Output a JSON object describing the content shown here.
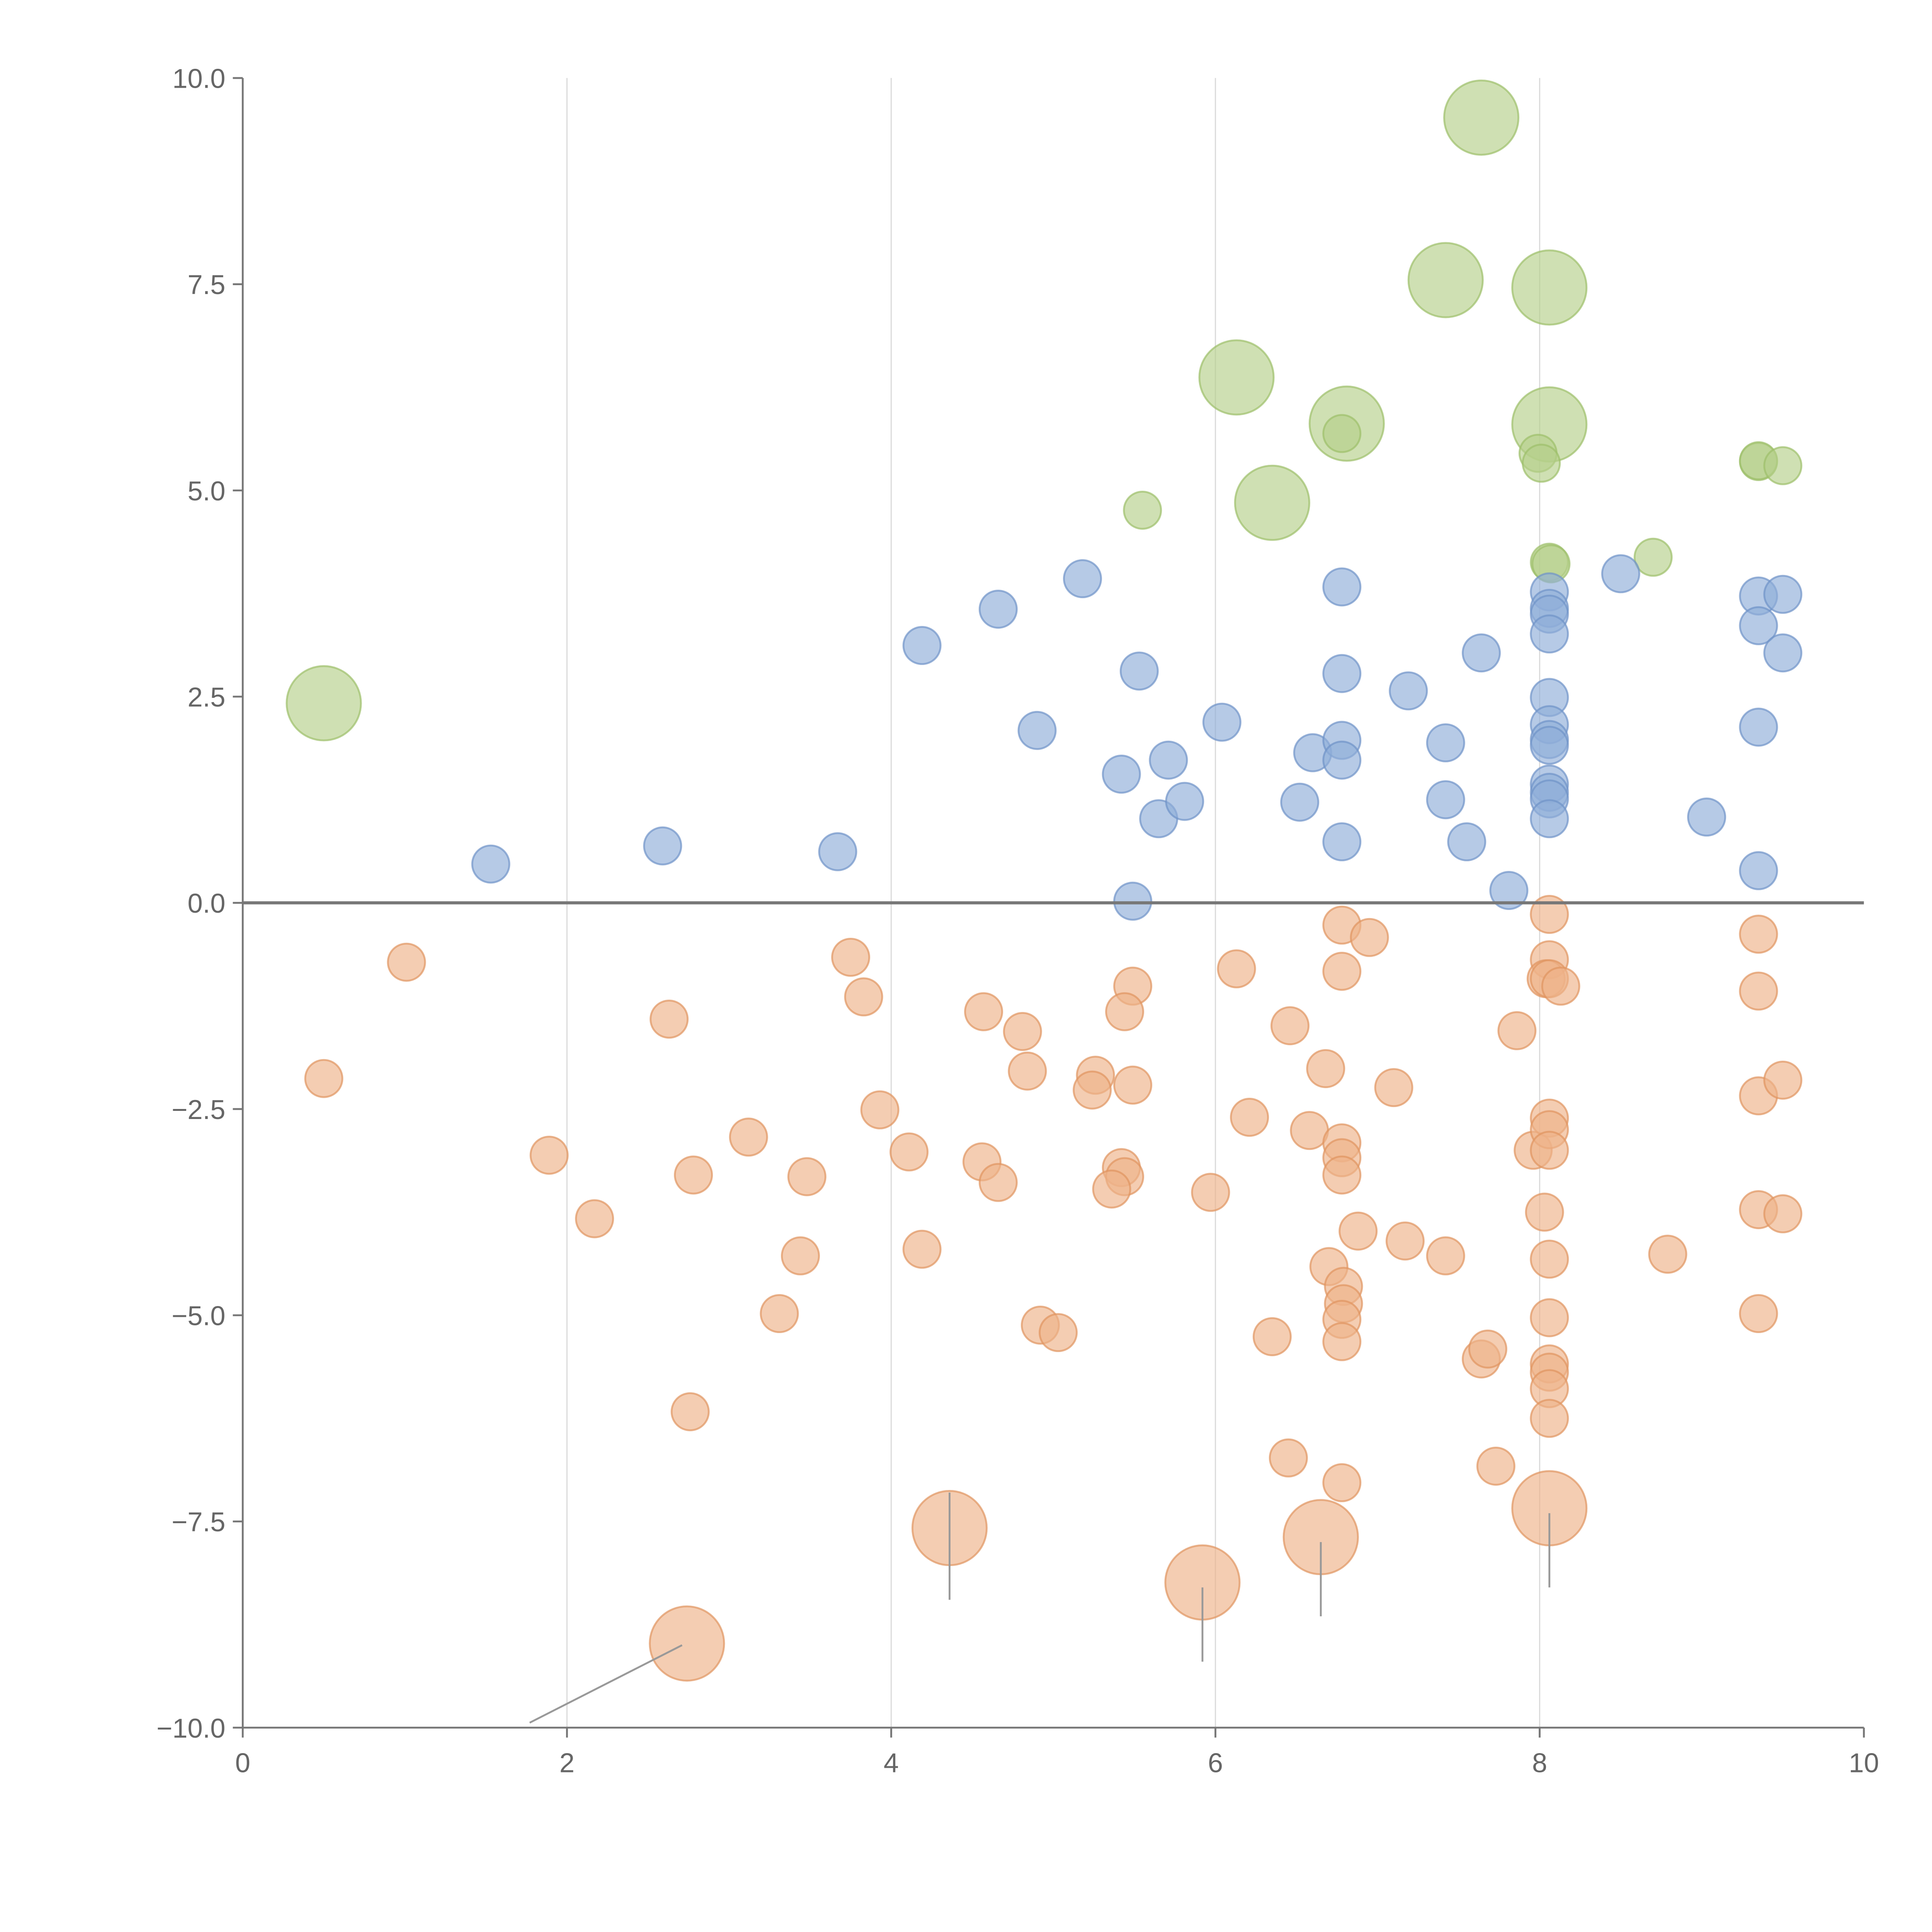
{
  "chart_data": {
    "type": "scatter",
    "title": "",
    "xlabel": "",
    "ylabel": "",
    "xlim": [
      0,
      10
    ],
    "ylim": [
      -10,
      10
    ],
    "grid": "vertical",
    "x_ticks": [
      "0",
      "2",
      "4",
      "6",
      "8",
      "10"
    ],
    "x_tick_values": [
      0,
      2,
      4,
      6,
      8,
      10
    ],
    "y_ticks": [
      "10.0",
      "7.5",
      "5.0",
      "2.5",
      "0.0",
      "−2.5",
      "−5.0",
      "−7.5",
      "−10.0"
    ],
    "y_tick_values": [
      10,
      7.5,
      5,
      2.5,
      0,
      -2.5,
      -5,
      -7.5,
      -10
    ],
    "reference_line_y": 0,
    "point_format": "[x, y, relative_size]",
    "series": [
      {
        "name": "green",
        "color": "#b5d08a",
        "stroke": "#9cbf6a",
        "points": [
          [
            7.64,
            9.52,
            4
          ],
          [
            7.42,
            7.55,
            4
          ],
          [
            8.06,
            7.46,
            4
          ],
          [
            6.13,
            6.37,
            4
          ],
          [
            6.81,
            5.81,
            4
          ],
          [
            8.06,
            5.8,
            4
          ],
          [
            6.35,
            4.85,
            4
          ],
          [
            0.5,
            2.42,
            4
          ],
          [
            6.78,
            5.69,
            1
          ],
          [
            7.99,
            5.45,
            1
          ],
          [
            8.01,
            5.33,
            1
          ],
          [
            9.35,
            5.35,
            1
          ],
          [
            9.35,
            5.36,
            1
          ],
          [
            9.5,
            5.3,
            1
          ],
          [
            5.55,
            4.76,
            1
          ],
          [
            8.7,
            4.19,
            1
          ],
          [
            8.06,
            4.13,
            1
          ],
          [
            8.07,
            4.11,
            1
          ]
        ]
      },
      {
        "name": "blue",
        "color": "#8fadd9",
        "stroke": "#6f93c8",
        "points": [
          [
            1.53,
            0.47,
            1
          ],
          [
            2.59,
            0.69,
            1
          ],
          [
            3.67,
            0.62,
            1
          ],
          [
            4.19,
            3.12,
            1
          ],
          [
            4.66,
            3.56,
            1
          ],
          [
            4.9,
            2.09,
            1
          ],
          [
            5.18,
            3.93,
            1
          ],
          [
            5.53,
            2.81,
            1
          ],
          [
            5.42,
            1.56,
            1
          ],
          [
            5.65,
            1.02,
            1
          ],
          [
            5.71,
            1.73,
            1
          ],
          [
            5.81,
            1.23,
            1
          ],
          [
            5.49,
            0.02,
            1
          ],
          [
            6.04,
            2.19,
            1
          ],
          [
            6.52,
            1.22,
            1
          ],
          [
            6.6,
            1.82,
            1
          ],
          [
            6.78,
            3.83,
            1
          ],
          [
            6.78,
            2.78,
            1
          ],
          [
            6.78,
            1.97,
            1
          ],
          [
            6.78,
            1.73,
            1
          ],
          [
            6.78,
            0.74,
            1
          ],
          [
            7.19,
            2.57,
            1
          ],
          [
            7.42,
            1.94,
            1
          ],
          [
            7.42,
            1.25,
            1
          ],
          [
            7.55,
            0.74,
            1
          ],
          [
            7.64,
            3.03,
            1
          ],
          [
            7.81,
            0.15,
            1
          ],
          [
            8.06,
            3.77,
            1
          ],
          [
            8.06,
            3.57,
            1
          ],
          [
            8.06,
            3.5,
            1
          ],
          [
            8.06,
            3.26,
            1
          ],
          [
            8.06,
            2.49,
            1
          ],
          [
            8.06,
            2.16,
            1
          ],
          [
            8.06,
            1.98,
            1
          ],
          [
            8.06,
            1.91,
            1
          ],
          [
            8.06,
            1.44,
            1
          ],
          [
            8.06,
            1.34,
            1
          ],
          [
            8.06,
            1.26,
            1
          ],
          [
            8.06,
            1.02,
            1
          ],
          [
            8.5,
            3.99,
            1
          ],
          [
            9.03,
            1.04,
            1
          ],
          [
            9.35,
            3.72,
            1
          ],
          [
            9.35,
            3.36,
            1
          ],
          [
            9.35,
            2.13,
            1
          ],
          [
            9.35,
            0.39,
            1
          ],
          [
            9.5,
            3.74,
            1
          ],
          [
            9.5,
            3.03,
            1
          ]
        ]
      },
      {
        "name": "orange",
        "color": "#eeb288",
        "stroke": "#e09460",
        "points": [
          [
            0.5,
            -2.13,
            1
          ],
          [
            1.01,
            -0.72,
            1
          ],
          [
            1.89,
            -3.06,
            1
          ],
          [
            2.17,
            -3.83,
            1
          ],
          [
            2.63,
            -1.41,
            1
          ],
          [
            2.78,
            -3.3,
            1
          ],
          [
            2.76,
            -6.17,
            1
          ],
          [
            3.12,
            -2.84,
            1
          ],
          [
            3.31,
            -4.98,
            1
          ],
          [
            3.44,
            -4.28,
            1
          ],
          [
            3.48,
            -3.32,
            1
          ],
          [
            3.75,
            -0.66,
            1
          ],
          [
            3.83,
            -1.14,
            1
          ],
          [
            3.93,
            -2.51,
            1
          ],
          [
            4.11,
            -3.02,
            1
          ],
          [
            4.19,
            -4.2,
            1
          ],
          [
            4.57,
            -1.32,
            1
          ],
          [
            4.56,
            -3.14,
            1
          ],
          [
            4.66,
            -3.39,
            1
          ],
          [
            4.81,
            -1.56,
            1
          ],
          [
            4.84,
            -2.04,
            1
          ],
          [
            4.92,
            -5.12,
            1
          ],
          [
            5.03,
            -5.21,
            1
          ],
          [
            5.26,
            -2.09,
            1
          ],
          [
            5.24,
            -2.27,
            1
          ],
          [
            5.49,
            -1.01,
            1
          ],
          [
            5.44,
            -1.32,
            1
          ],
          [
            5.49,
            -2.21,
            1
          ],
          [
            5.42,
            -3.21,
            1
          ],
          [
            5.44,
            -3.32,
            1
          ],
          [
            5.36,
            -3.47,
            1
          ],
          [
            5.97,
            -3.51,
            1
          ],
          [
            6.13,
            -0.8,
            1
          ],
          [
            6.21,
            -2.6,
            1
          ],
          [
            6.35,
            -5.26,
            1
          ],
          [
            6.46,
            -1.49,
            1
          ],
          [
            6.45,
            -6.73,
            1
          ],
          [
            6.58,
            -2.76,
            1
          ],
          [
            6.68,
            -2.01,
            1
          ],
          [
            6.7,
            -4.41,
            1
          ],
          [
            6.78,
            -0.27,
            1
          ],
          [
            6.78,
            -0.83,
            1
          ],
          [
            6.78,
            -2.91,
            1
          ],
          [
            6.78,
            -3.09,
            1
          ],
          [
            6.78,
            -3.3,
            1
          ],
          [
            6.79,
            -4.65,
            1
          ],
          [
            6.79,
            -4.86,
            1
          ],
          [
            6.78,
            -5.05,
            1
          ],
          [
            6.78,
            -5.32,
            1
          ],
          [
            6.78,
            -7.03,
            1
          ],
          [
            6.88,
            -3.98,
            1
          ],
          [
            6.95,
            -0.42,
            1
          ],
          [
            7.1,
            -2.24,
            1
          ],
          [
            7.17,
            -4.1,
            1
          ],
          [
            7.42,
            -4.28,
            1
          ],
          [
            7.64,
            -5.53,
            1
          ],
          [
            7.68,
            -5.41,
            1
          ],
          [
            7.73,
            -6.83,
            1
          ],
          [
            7.86,
            -1.55,
            1
          ],
          [
            7.96,
            -3.0,
            1
          ],
          [
            8.03,
            -3.75,
            1
          ],
          [
            8.06,
            -0.14,
            1
          ],
          [
            8.06,
            -0.69,
            1
          ],
          [
            8.04,
            -0.92,
            1
          ],
          [
            8.06,
            -0.92,
            1
          ],
          [
            8.13,
            -1.01,
            1
          ],
          [
            8.06,
            -2.61,
            1
          ],
          [
            8.06,
            -2.75,
            1
          ],
          [
            8.06,
            -3.0,
            1
          ],
          [
            8.06,
            -4.32,
            1
          ],
          [
            8.06,
            -5.03,
            1
          ],
          [
            8.06,
            -5.59,
            1
          ],
          [
            8.06,
            -5.69,
            1
          ],
          [
            8.06,
            -5.89,
            1
          ],
          [
            8.06,
            -6.25,
            1
          ],
          [
            8.79,
            -4.26,
            1
          ],
          [
            9.35,
            -0.38,
            1
          ],
          [
            9.35,
            -1.07,
            1
          ],
          [
            9.35,
            -2.34,
            1
          ],
          [
            9.35,
            -3.72,
            1
          ],
          [
            9.35,
            -4.98,
            1
          ],
          [
            9.5,
            -2.15,
            1
          ],
          [
            9.5,
            -3.77,
            1
          ],
          [
            2.74,
            -8.98,
            4
          ],
          [
            4.36,
            -7.58,
            4
          ],
          [
            5.92,
            -8.24,
            4
          ],
          [
            6.65,
            -7.69,
            4
          ],
          [
            8.06,
            -7.34,
            4
          ]
        ]
      }
    ],
    "leader_lines": [
      {
        "from": [
          1.77,
          -9.94
        ],
        "to": [
          2.71,
          -9.0
        ]
      },
      {
        "from": [
          4.36,
          -7.15
        ],
        "to": [
          4.36,
          -8.45
        ]
      },
      {
        "from": [
          5.92,
          -8.3
        ],
        "to": [
          5.92,
          -9.2
        ]
      },
      {
        "from": [
          6.65,
          -7.75
        ],
        "to": [
          6.65,
          -8.65
        ]
      },
      {
        "from": [
          8.06,
          -7.4
        ],
        "to": [
          8.06,
          -8.3
        ]
      }
    ]
  }
}
